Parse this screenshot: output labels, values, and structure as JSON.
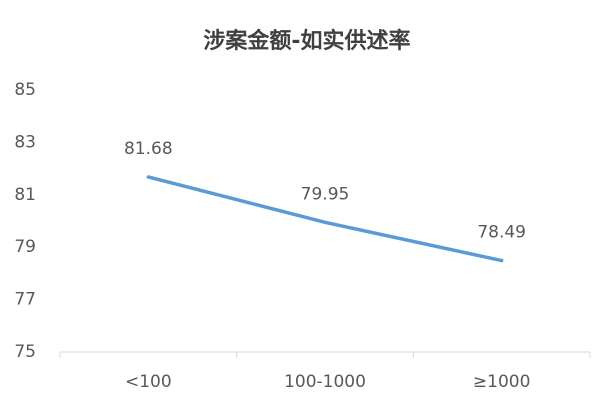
{
  "chart_data": {
    "type": "line",
    "title": "涉案金额-如实供述率",
    "categories": [
      "<100",
      "100-1000",
      "≥1000"
    ],
    "values": [
      81.68,
      79.95,
      78.49
    ],
    "color": "#5b9bd5",
    "ylim": [
      75,
      85
    ],
    "yticks": [
      75,
      77,
      79,
      81,
      83,
      85
    ],
    "grid": false
  }
}
